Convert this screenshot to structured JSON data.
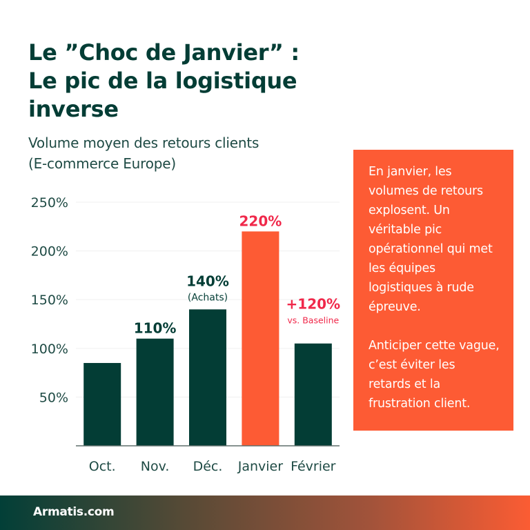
{
  "header": {
    "title_lines": [
      "Le ”Choc de Janvier” :",
      "Le pic de la logistique",
      "inverse"
    ],
    "subtitle_lines": [
      "Volume moyen des retours clients",
      "(E-commerce Europe)"
    ]
  },
  "colors": {
    "primary_dark_green": "#033d35",
    "accent_orange": "#fd5b34",
    "highlight_red": "#f0284a",
    "axis_text": "#1e4a44",
    "gridline": "#f2f2f2",
    "white": "#ffffff"
  },
  "chart_data": {
    "type": "bar",
    "title": "Volume moyen des retours clients (E-commerce Europe)",
    "xlabel": "",
    "ylabel": "",
    "categories": [
      "Oct.",
      "Nov.",
      "Déc.",
      "Janvier",
      "Février"
    ],
    "values": [
      85,
      110,
      140,
      220,
      105
    ],
    "unit": "%",
    "ylim": [
      0,
      250
    ],
    "yticks": [
      50,
      100,
      150,
      200,
      250
    ],
    "ytick_labels": [
      "50%",
      "100%",
      "150%",
      "200%",
      "250%"
    ],
    "grid": true,
    "legend": "none",
    "highlight_index": 3,
    "data_labels": [
      {
        "category": "Nov.",
        "text": "110%",
        "sub": ""
      },
      {
        "category": "Déc.",
        "text": "140%",
        "sub": "(Achats)"
      },
      {
        "category": "Janvier",
        "text": "220%",
        "sub": ""
      },
      {
        "category": "Février",
        "text": "+120%",
        "sub": "vs. Baseline"
      }
    ]
  },
  "callout": {
    "paragraphs": [
      "En janvier, les volumes de retours explosent. Un véritable pic opérationnel qui met les équipes logistiques à rude épreuve.",
      "Anticiper cette vague, c’est éviter les retards et la frustration client."
    ]
  },
  "footer": {
    "brand": "Armatis.com"
  }
}
